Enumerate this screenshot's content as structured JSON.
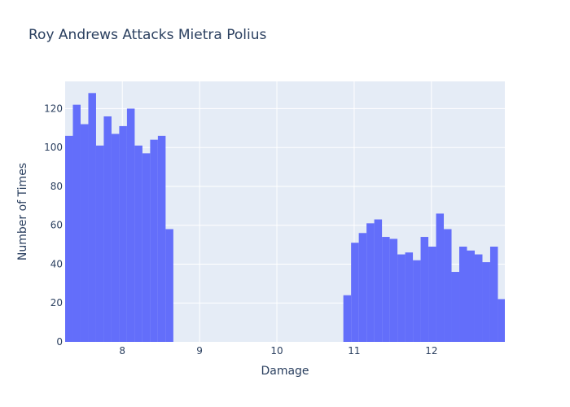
{
  "chart_data": {
    "type": "bar",
    "title": "Roy Andrews Attacks Mietra Polius",
    "xlabel": "Damage",
    "ylabel": "Number of Times",
    "xlim": [
      7.26,
      12.95
    ],
    "ylim": [
      0,
      134
    ],
    "xticks": [
      8,
      9,
      10,
      11,
      12
    ],
    "yticks": [
      0,
      20,
      40,
      60,
      80,
      100,
      120
    ],
    "bin_width": 0.1,
    "bin_start": 7.26,
    "counts": [
      106,
      122,
      112,
      128,
      101,
      116,
      107,
      111,
      120,
      101,
      97,
      104,
      106,
      58,
      0,
      0,
      0,
      0,
      0,
      0,
      0,
      0,
      0,
      0,
      0,
      0,
      0,
      0,
      0,
      0,
      0,
      0,
      0,
      0,
      0,
      0,
      24,
      51,
      56,
      61,
      63,
      54,
      53,
      45,
      46,
      42,
      54,
      49,
      66,
      58,
      36,
      49,
      47,
      45,
      41,
      49,
      22
    ],
    "bar_color": "#636efa",
    "plot_bgcolor": "#e5ecf6",
    "grid": true
  }
}
